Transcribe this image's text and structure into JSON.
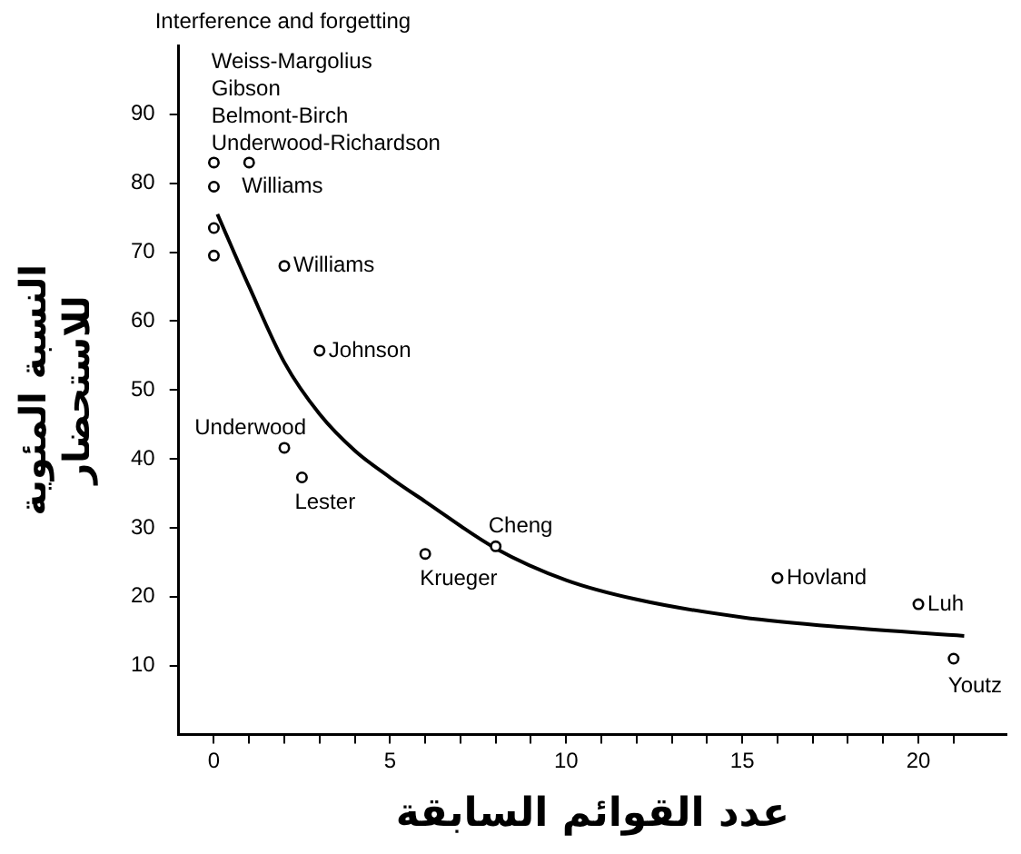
{
  "chart_data": {
    "type": "scatter",
    "title": "Interference and forgetting",
    "xlabel": "عدد القوائم السابقة",
    "ylabel": "النسبة المئوية\nللاستحضار",
    "xlim": [
      -1,
      22.5
    ],
    "ylim": [
      0,
      100
    ],
    "xticks": [
      0,
      {
        "value": 1,
        "label": null
      },
      {
        "value": 2,
        "label": null
      },
      {
        "value": 3,
        "label": null
      },
      {
        "value": 4,
        "label": null
      },
      5,
      {
        "value": 6,
        "label": null
      },
      {
        "value": 7,
        "label": null
      },
      {
        "value": 8,
        "label": null
      },
      {
        "value": 9,
        "label": null
      },
      10,
      {
        "value": 11,
        "label": null
      },
      {
        "value": 12,
        "label": null
      },
      {
        "value": 13,
        "label": null
      },
      {
        "value": 14,
        "label": null
      },
      15,
      {
        "value": 16,
        "label": null
      },
      {
        "value": 17,
        "label": null
      },
      {
        "value": 18,
        "label": null
      },
      {
        "value": 19,
        "label": null
      },
      20,
      {
        "value": 21,
        "label": null
      }
    ],
    "yticks": [
      10,
      20,
      30,
      40,
      50,
      60,
      70,
      80,
      90
    ],
    "grid": false,
    "legend": false,
    "marker": "circle",
    "series": [
      {
        "color": "#000000",
        "x": [
          0,
          1,
          0,
          0,
          0,
          2,
          3,
          2,
          2.5,
          6,
          8,
          16,
          20,
          21
        ],
        "values": [
          83,
          83,
          79.5,
          73.5,
          69.5,
          68,
          55.7,
          41.6,
          37.3,
          26.2,
          27.3,
          22.7,
          18.9,
          11
        ]
      },
      {
        "type": "line",
        "marker": "none",
        "color": "#000000",
        "x": [
          0.1,
          1,
          2,
          3,
          4,
          5,
          6,
          8,
          10,
          12,
          15,
          18,
          21.3
        ],
        "values": [
          75.5,
          65,
          54,
          46.5,
          41.2,
          37.3,
          33.8,
          27,
          22.4,
          19.6,
          17,
          15.5,
          14.3
        ]
      }
    ],
    "annotations": [
      "Weiss-Margolius",
      "Gibson",
      "Belmont-Birch",
      "Underwood-Richardson",
      {
        "text": "Williams",
        "x": 1,
        "y": 83
      },
      {
        "text": "Williams",
        "x": 2,
        "y": 68
      },
      {
        "text": "Johnson",
        "x": 3,
        "y": 55.7
      },
      {
        "text": "Underwood",
        "x": 2,
        "y": 41.6
      },
      {
        "text": "Lester",
        "x": 2.5,
        "y": 37.3
      },
      {
        "text": "Krueger",
        "x": 6,
        "y": 26.2
      },
      {
        "text": "Cheng",
        "x": 8,
        "y": 27.3
      },
      {
        "text": "Hovland",
        "x": 16,
        "y": 22.7
      },
      {
        "text": "Luh",
        "x": 20,
        "y": 18.9
      },
      {
        "text": "Youtz",
        "x": 21,
        "y": 11
      }
    ]
  }
}
